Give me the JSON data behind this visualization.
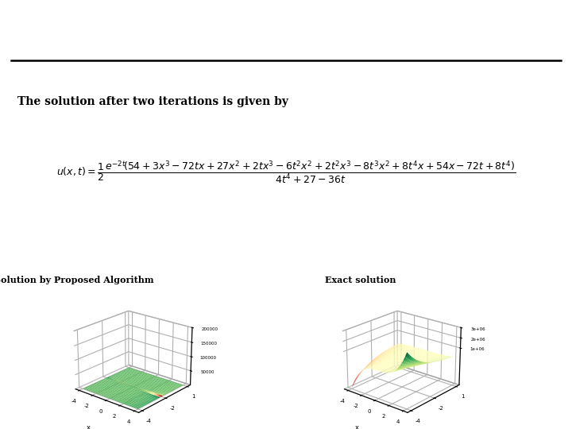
{
  "header_color1": "#8B8B4E",
  "header_color2": "#7B0000",
  "text_line1": "The solution after two iterations is given by",
  "label_left": "Solution by Proposed Algorithm",
  "label_right": "Exact solution",
  "background": "#ffffff",
  "formula_fontsize": 9,
  "title_fontsize": 8
}
